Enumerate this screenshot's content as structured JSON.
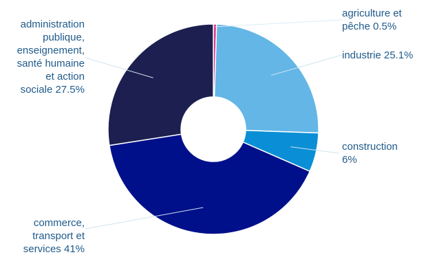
{
  "chart_data": {
    "type": "pie",
    "donut": true,
    "slices": [
      {
        "label_lines": [
          "agriculture et",
          "pêche 0.5%"
        ],
        "value": 0.5,
        "color": "#d63a8a"
      },
      {
        "label_lines": [
          "industrie 25.1%"
        ],
        "value": 25.1,
        "color": "#63b6e6"
      },
      {
        "label_lines": [
          "construction",
          "6%"
        ],
        "value": 6,
        "color": "#0a8fd6"
      },
      {
        "label_lines": [
          "commerce,",
          "transport et",
          "services 41%"
        ],
        "value": 41,
        "color": "#00108a"
      },
      {
        "label_lines": [
          "administration",
          "publique,",
          "enseignement,",
          "santé humaine",
          "et action",
          "sociale 27.5%"
        ],
        "value": 27.5,
        "color": "#1c1f4f"
      }
    ]
  }
}
